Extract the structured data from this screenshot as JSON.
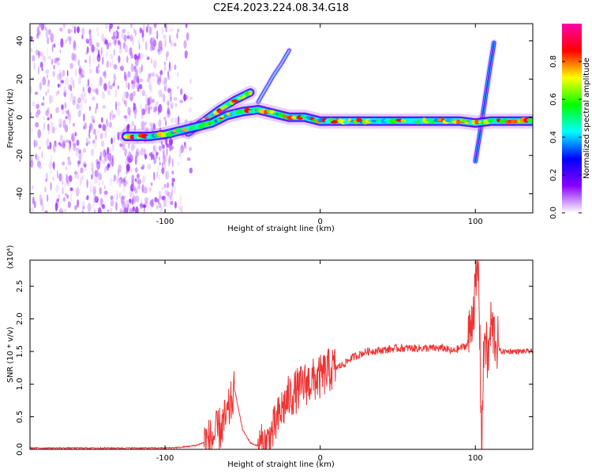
{
  "figure": {
    "title": "C2E4.2023.224.08.34.G18"
  },
  "chart_data": [
    {
      "type": "heatmap",
      "title": "C2E4.2023.224.08.34.G18",
      "xlabel": "Height of straight line (km)",
      "ylabel": "Frequency (Hz)",
      "xlim": [
        -187,
        137
      ],
      "ylim": [
        -50,
        49
      ],
      "x_ticks": [
        "-100",
        "0",
        "100"
      ],
      "y_ticks": [
        "40",
        "20",
        "0",
        "-20",
        "-40"
      ],
      "colorbar": {
        "label": "Normalized spectral amplitude",
        "range": [
          0,
          1
        ],
        "ticks": [
          "0.0",
          "0.2",
          "0.4",
          "0.6",
          "0.8"
        ],
        "colors": [
          "#ffffff",
          "#8800ff",
          "#0000ff",
          "#00ffff",
          "#00ff00",
          "#ffff00",
          "#ff0000",
          "#ff00aa"
        ]
      },
      "noise_region_x": [
        -187,
        -95
      ],
      "main_trace": {
        "x": [
          -125,
          -110,
          -100,
          -90,
          -80,
          -70,
          -60,
          -50,
          -40,
          -30,
          -20,
          -10,
          0,
          20,
          40,
          60,
          80,
          90,
          100,
          110,
          120,
          137
        ],
        "y": [
          -10,
          -10,
          -9,
          -7,
          -5,
          -3,
          1,
          3,
          4,
          2,
          0,
          0,
          -2,
          -2,
          -2,
          -2,
          -2,
          -2,
          -3,
          -2,
          -2,
          -2
        ]
      },
      "upper_branch": {
        "x": [
          -85,
          -75,
          -65,
          -55,
          -45
        ],
        "y": [
          -8,
          -2,
          4,
          9,
          13
        ]
      },
      "faint_streak": {
        "x": [
          -40,
          -35,
          -30,
          -25,
          -20
        ],
        "y": [
          8,
          15,
          22,
          28,
          35
        ]
      },
      "near_vertical_streak": {
        "x": [
          100,
          103,
          106,
          109,
          112
        ],
        "y": [
          -23,
          -8,
          8,
          24,
          39
        ]
      }
    },
    {
      "type": "line",
      "xlabel": "Height of straight line (km)",
      "ylabel": "SNR (10 * v/v)",
      "scale_note": "(x10⁴)",
      "xlim": [
        -187,
        137
      ],
      "ylim": [
        0,
        2.9
      ],
      "x_ticks": [
        "-100",
        "0",
        "100"
      ],
      "y_ticks": [
        "0.0",
        "0.5",
        "1.0",
        "1.5",
        "2.0",
        "2.5"
      ],
      "series": [
        {
          "name": "SNR",
          "color": "#ee3333",
          "x": [
            -187,
            -160,
            -130,
            -100,
            -90,
            -80,
            -70,
            -65,
            -60,
            -55,
            -50,
            -45,
            -40,
            -35,
            -30,
            -25,
            -20,
            -15,
            -10,
            -5,
            0,
            5,
            10,
            15,
            20,
            25,
            30,
            40,
            50,
            60,
            70,
            80,
            85,
            90,
            95,
            100,
            102,
            104,
            106,
            108,
            110,
            113,
            116,
            120,
            130,
            137
          ],
          "y": [
            0.02,
            0.02,
            0.02,
            0.02,
            0.03,
            0.06,
            0.15,
            0.3,
            0.5,
            0.9,
            0.3,
            0.1,
            0.05,
            0.05,
            0.3,
            0.6,
            0.8,
            0.9,
            1.0,
            1.05,
            1.1,
            1.2,
            1.25,
            1.3,
            1.4,
            1.45,
            1.5,
            1.52,
            1.55,
            1.55,
            1.55,
            1.55,
            1.5,
            1.55,
            1.6,
            2.4,
            2.85,
            0.1,
            1.9,
            1.3,
            1.9,
            1.7,
            1.5,
            1.5,
            1.5,
            1.5
          ]
        }
      ]
    }
  ]
}
